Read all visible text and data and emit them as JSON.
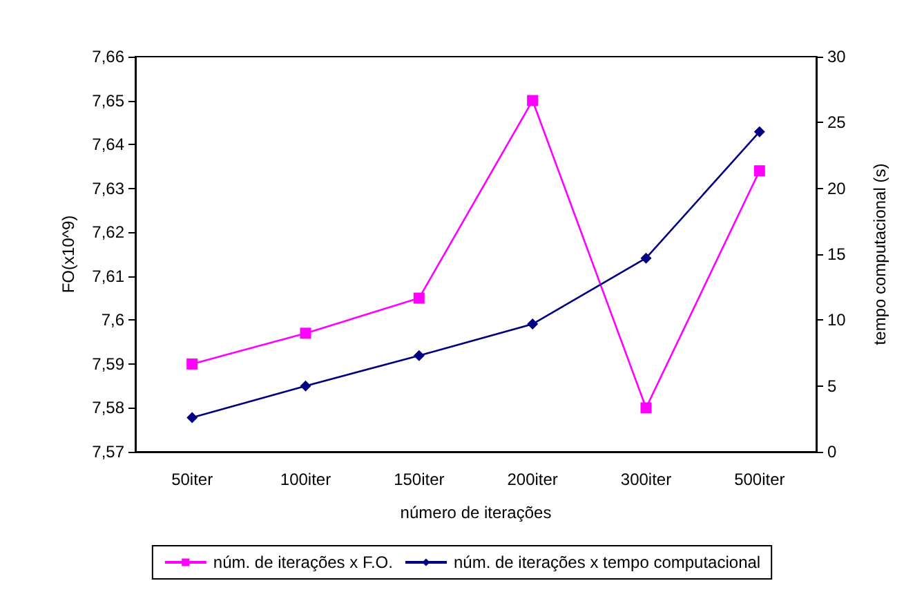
{
  "chart_data": {
    "type": "line",
    "xlabel": "número de iterações",
    "ylabel": "FO(x10^9)",
    "y2label": "tempo computacional (s)",
    "categories": [
      "50iter",
      "100iter",
      "150iter",
      "200iter",
      "300iter",
      "500iter"
    ],
    "series": [
      {
        "name": "núm. de iterações x F.O.",
        "color": "#ff00ff",
        "marker": "square",
        "values": [
          7.59,
          7.597,
          7.605,
          7.65,
          7.58,
          7.634
        ]
      },
      {
        "name": "núm. de iterações x tempo computacional",
        "color": "#000080",
        "marker": "diamond",
        "axis": "y2",
        "values": [
          2.6,
          5,
          7.3,
          9.7,
          14.7,
          24.3
        ]
      }
    ],
    "ylim": [
      7.57,
      7.66
    ],
    "yticks": [
      {
        "value": 7.57,
        "label": "7,57"
      },
      {
        "value": 7.58,
        "label": "7,58"
      },
      {
        "value": 7.59,
        "label": "7,59"
      },
      {
        "value": 7.6,
        "label": "7,6"
      },
      {
        "value": 7.61,
        "label": "7,61"
      },
      {
        "value": 7.62,
        "label": "7,62"
      },
      {
        "value": 7.63,
        "label": "7,63"
      },
      {
        "value": 7.64,
        "label": "7,64"
      },
      {
        "value": 7.65,
        "label": "7,65"
      },
      {
        "value": 7.66,
        "label": "7,66"
      }
    ],
    "y2lim": [
      0,
      30
    ],
    "y2ticks": [
      0,
      5,
      10,
      15,
      20,
      25,
      30
    ],
    "grid": false,
    "legend": "bottom"
  }
}
